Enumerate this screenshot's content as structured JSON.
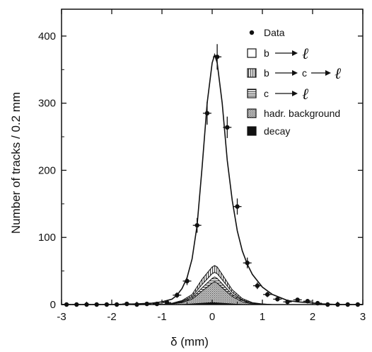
{
  "chart_data": {
    "type": "line",
    "xlabel": "δ (mm)",
    "ylabel": "Number of tracks / 0.2 mm",
    "xlim": [
      -3,
      3
    ],
    "ylim": [
      0,
      440
    ],
    "xticks": [
      -3,
      -2,
      -1,
      0,
      1,
      2,
      3
    ],
    "yticks": [
      0,
      100,
      200,
      300,
      400
    ],
    "legend": {
      "position": "top-right",
      "entries": [
        "Data",
        "b",
        "b",
        "c",
        "hadr. background",
        "decay"
      ],
      "arrow_targets": [
        "ℓ",
        "c",
        "ℓ",
        "ℓ"
      ]
    },
    "series": [
      {
        "name": "Data",
        "x": [
          -2.9,
          -2.7,
          -2.5,
          -2.3,
          -2.1,
          -1.9,
          -1.7,
          -1.5,
          -1.3,
          -1.1,
          -0.9,
          -0.7,
          -0.5,
          -0.3,
          -0.1,
          0.1,
          0.3,
          0.5,
          0.7,
          0.9,
          1.1,
          1.3,
          1.5,
          1.7,
          1.9,
          2.1,
          2.3,
          2.5,
          2.7,
          2.9
        ],
        "y": [
          0,
          0,
          0,
          0,
          0,
          0,
          1,
          0,
          1,
          1,
          3,
          14,
          35,
          118,
          285,
          369,
          264,
          146,
          62,
          28,
          15,
          8,
          4,
          7,
          5,
          2,
          0,
          0,
          0,
          0
        ],
        "yerr": [
          1,
          1,
          1,
          1,
          1,
          1,
          1,
          1,
          1,
          1,
          2,
          4,
          6,
          11,
          17,
          19,
          16,
          12,
          8,
          5,
          4,
          3,
          2,
          3,
          2,
          1,
          1,
          1,
          1,
          1
        ]
      }
    ],
    "fit": {
      "x": [
        -3.0,
        -2.5,
        -2.0,
        -1.5,
        -1.2,
        -1.0,
        -0.8,
        -0.7,
        -0.6,
        -0.5,
        -0.4,
        -0.3,
        -0.2,
        -0.1,
        0.0,
        0.05,
        0.1,
        0.2,
        0.3,
        0.4,
        0.5,
        0.6,
        0.7,
        0.8,
        1.0,
        1.2,
        1.5,
        1.7,
        1.9,
        2.2,
        2.5,
        3.0
      ],
      "y": [
        0,
        0,
        0,
        1,
        2,
        4,
        8,
        14,
        24,
        40,
        68,
        118,
        205,
        300,
        360,
        372,
        360,
        300,
        215,
        155,
        110,
        80,
        60,
        45,
        26,
        15,
        6,
        4,
        3,
        1,
        0,
        0
      ]
    },
    "components": [
      {
        "name": "b → c → ℓ",
        "x": [
          -1.0,
          -0.8,
          -0.6,
          -0.4,
          -0.2,
          0.0,
          0.05,
          0.1,
          0.2,
          0.4,
          0.6,
          0.8,
          1.0,
          1.2
        ],
        "y": [
          0,
          2,
          6,
          15,
          38,
          56,
          58,
          56,
          45,
          22,
          9,
          3,
          1,
          0
        ]
      },
      {
        "name": "b → ℓ",
        "x": [
          -1.0,
          -0.8,
          -0.6,
          -0.4,
          -0.2,
          0.0,
          0.05,
          0.1,
          0.2,
          0.4,
          0.6,
          0.8,
          1.0,
          1.2
        ],
        "y": [
          0,
          1,
          5,
          12,
          30,
          46,
          48,
          46,
          37,
          18,
          7,
          2,
          1,
          0
        ]
      },
      {
        "name": "c → ℓ",
        "x": [
          -1.0,
          -0.8,
          -0.6,
          -0.4,
          -0.2,
          0.0,
          0.05,
          0.1,
          0.2,
          0.4,
          0.6,
          0.8,
          1.0,
          1.2
        ],
        "y": [
          0,
          1,
          4,
          10,
          25,
          39,
          41,
          39,
          31,
          15,
          6,
          2,
          0,
          0
        ]
      },
      {
        "name": "hadr. background",
        "x": [
          -1.0,
          -0.8,
          -0.6,
          -0.4,
          -0.2,
          0.0,
          0.05,
          0.1,
          0.2,
          0.4,
          0.6,
          0.8,
          1.0,
          1.2
        ],
        "y": [
          0,
          1,
          3,
          8,
          20,
          32,
          34,
          32,
          25,
          12,
          4,
          1,
          0,
          0
        ]
      },
      {
        "name": "decay",
        "x": [
          -0.6,
          -0.4,
          -0.2,
          0.0,
          0.2,
          0.4,
          0.6
        ],
        "y": [
          0,
          1,
          2,
          3,
          2,
          1,
          0
        ]
      }
    ]
  }
}
